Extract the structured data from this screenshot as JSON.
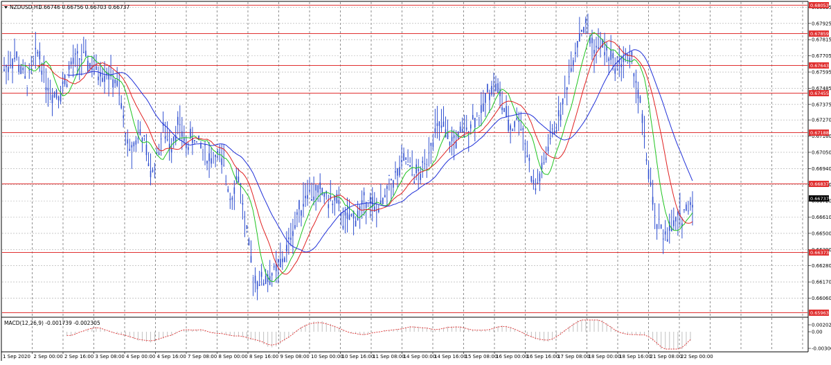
{
  "header": {
    "menu_icon": "triangle-down-icon",
    "symbol": "NZDUSD,H1",
    "quote": "0.66746 0.66756 0.66703 0.66737"
  },
  "macd": {
    "label": "MACD(12,26,9) -0.001739 -0.002305",
    "ticks": [
      "0.002024",
      "0.00",
      "-0.003008"
    ]
  },
  "colors": {
    "background": "#ffffff",
    "candle": "#3050d0",
    "ma_fast": "#1fc41f",
    "ma_mid": "#e02020",
    "ma_slow": "#2030d8",
    "level_line": "#e03030",
    "grid": "#a8a8a8",
    "current_price_tag": "#000000"
  },
  "chart_data": {
    "type": "line",
    "symbol": "NZDUSD",
    "timeframe": "H1",
    "ylim": [
      0.6594,
      0.6807
    ],
    "y_ticks": [
      "0.68035",
      "0.67925",
      "0.67815",
      "0.67705",
      "0.67595",
      "0.67485",
      "0.67375",
      "0.67270",
      "0.67160",
      "0.67050",
      "0.66940",
      "0.66830",
      "0.66720",
      "0.66610",
      "0.66500",
      "0.66390",
      "0.66280",
      "0.66170",
      "0.66060"
    ],
    "x_ticks": [
      "1 Sep 2020",
      "2 Sep 00:00",
      "2 Sep 16:00",
      "3 Sep 08:00",
      "4 Sep 00:00",
      "4 Sep 16:00",
      "7 Sep 08:00",
      "8 Sep 00:00",
      "8 Sep 16:00",
      "9 Sep 08:00",
      "10 Sep 00:00",
      "10 Sep 16:00",
      "11 Sep 08:00",
      "14 Sep 00:00",
      "14 Sep 16:00",
      "15 Sep 08:00",
      "16 Sep 00:00",
      "16 Sep 16:00",
      "17 Sep 08:00",
      "18 Sep 00:00",
      "18 Sep 16:00",
      "21 Sep 08:00",
      "22 Sep 00:00"
    ],
    "levels": [
      "0.68053",
      "0.67859",
      "0.67643",
      "0.67455",
      "0.67188",
      "0.66837",
      "0.66373",
      "0.65963"
    ],
    "current_price": "0.66737",
    "price_path": [
      [
        0,
        0.6762
      ],
      [
        1.5,
        0.677
      ],
      [
        3,
        0.6752
      ],
      [
        4.5,
        0.6775
      ],
      [
        6,
        0.6745
      ],
      [
        7.5,
        0.6747
      ],
      [
        9,
        0.6765
      ],
      [
        10.5,
        0.677
      ],
      [
        12,
        0.676
      ],
      [
        13.5,
        0.676
      ],
      [
        15,
        0.675
      ],
      [
        16.5,
        0.6705
      ],
      [
        18,
        0.672
      ],
      [
        19.5,
        0.669
      ],
      [
        21,
        0.672
      ],
      [
        22,
        0.671
      ],
      [
        23,
        0.6725
      ],
      [
        24,
        0.671
      ],
      [
        25,
        0.6715
      ],
      [
        26,
        0.671
      ],
      [
        27,
        0.67
      ],
      [
        28,
        0.6704
      ],
      [
        29,
        0.6695
      ],
      [
        30,
        0.6675
      ],
      [
        31,
        0.669
      ],
      [
        32,
        0.665
      ],
      [
        33,
        0.662
      ],
      [
        34,
        0.6618
      ],
      [
        35,
        0.6621
      ],
      [
        36,
        0.6625
      ],
      [
        37,
        0.6633
      ],
      [
        38,
        0.665
      ],
      [
        39,
        0.6665
      ],
      [
        40,
        0.668
      ],
      [
        41,
        0.6677
      ],
      [
        42,
        0.6678
      ],
      [
        43,
        0.6672
      ],
      [
        44,
        0.667
      ],
      [
        45,
        0.6658
      ],
      [
        46,
        0.666
      ],
      [
        47,
        0.6665
      ],
      [
        48,
        0.6675
      ],
      [
        49,
        0.6665
      ],
      [
        50,
        0.667
      ],
      [
        51,
        0.6683
      ],
      [
        52,
        0.669
      ],
      [
        53,
        0.67
      ],
      [
        54,
        0.6692
      ],
      [
        55,
        0.6688
      ],
      [
        56,
        0.6705
      ],
      [
        57,
        0.672
      ],
      [
        58,
        0.6722
      ],
      [
        59,
        0.671
      ],
      [
        60,
        0.6715
      ],
      [
        61,
        0.672
      ],
      [
        62,
        0.6728
      ],
      [
        63,
        0.673
      ],
      [
        64,
        0.6748
      ],
      [
        65,
        0.6752
      ],
      [
        66,
        0.6735
      ],
      [
        67,
        0.672
      ],
      [
        68,
        0.673
      ],
      [
        69,
        0.671
      ],
      [
        70,
        0.668
      ],
      [
        71,
        0.669
      ],
      [
        72,
        0.671
      ],
      [
        73,
        0.6725
      ],
      [
        74,
        0.674
      ],
      [
        75,
        0.6765
      ],
      [
        76,
        0.6785
      ],
      [
        77,
        0.679
      ],
      [
        78,
        0.6775
      ],
      [
        79,
        0.6778
      ],
      [
        80,
        0.677
      ],
      [
        81,
        0.6765
      ],
      [
        82,
        0.6768
      ],
      [
        83,
        0.6766
      ],
      [
        84,
        0.674
      ],
      [
        85,
        0.67
      ],
      [
        86,
        0.666
      ],
      [
        87,
        0.665
      ],
      [
        88,
        0.6652
      ],
      [
        89,
        0.6658
      ],
      [
        90,
        0.6665
      ],
      [
        91,
        0.6673
      ]
    ]
  }
}
